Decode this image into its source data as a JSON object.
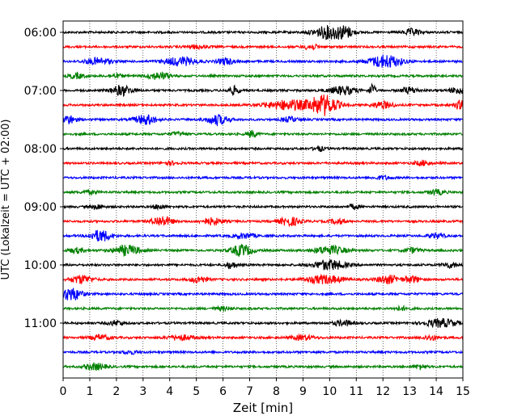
{
  "chart_data": {
    "type": "line",
    "xlabel": "Zeit  [min]",
    "ylabel": "UTC (Lokalzeit = UTC + 02:00)",
    "xlim": [
      0,
      15
    ],
    "x_ticks": [
      "0",
      "1",
      "2",
      "3",
      "4",
      "5",
      "6",
      "7",
      "8",
      "9",
      "10",
      "11",
      "12",
      "13",
      "14",
      "15"
    ],
    "y_ticks": [
      "06:00",
      "07:00",
      "08:00",
      "09:00",
      "10:00",
      "11:00"
    ],
    "grid_x": true,
    "trace_interval_min": 15,
    "start_time": "06:00",
    "trace_colors": [
      "#000000",
      "#ff0000",
      "#0000ff",
      "#008000"
    ],
    "traces": [
      {
        "time": "06:00",
        "color": "#000000",
        "bursts": [
          [
            10.0,
            0.6,
            8
          ],
          [
            10.6,
            0.3,
            5
          ],
          [
            13.1,
            0.3,
            4
          ]
        ]
      },
      {
        "time": "06:15",
        "color": "#ff0000",
        "bursts": [
          [
            5.0,
            0.4,
            2
          ],
          [
            9.3,
            0.3,
            3
          ]
        ]
      },
      {
        "time": "06:30",
        "color": "#0000ff",
        "bursts": [
          [
            1.3,
            0.5,
            4
          ],
          [
            4.4,
            0.6,
            5
          ],
          [
            6.1,
            0.3,
            4
          ],
          [
            12.1,
            0.6,
            8
          ]
        ]
      },
      {
        "time": "06:45",
        "color": "#008000",
        "bursts": [
          [
            0.5,
            0.3,
            3
          ],
          [
            2.0,
            0.3,
            2
          ],
          [
            3.4,
            0.3,
            3
          ],
          [
            3.8,
            0.3,
            3
          ]
        ]
      },
      {
        "time": "07:00",
        "color": "#000000",
        "bursts": [
          [
            2.2,
            0.4,
            6
          ],
          [
            6.4,
            0.2,
            5
          ],
          [
            10.5,
            0.5,
            5
          ],
          [
            11.6,
            0.1,
            9
          ],
          [
            13.0,
            0.3,
            4
          ],
          [
            14.8,
            0.3,
            4
          ]
        ]
      },
      {
        "time": "07:15",
        "color": "#ff0000",
        "bursts": [
          [
            8.5,
            0.9,
            6
          ],
          [
            9.8,
            0.5,
            12
          ],
          [
            12.0,
            0.4,
            4
          ],
          [
            15.0,
            0.3,
            6
          ]
        ]
      },
      {
        "time": "07:30",
        "color": "#0000ff",
        "bursts": [
          [
            0.2,
            0.3,
            5
          ],
          [
            3.1,
            0.4,
            6
          ],
          [
            5.8,
            0.4,
            6
          ],
          [
            8.5,
            0.3,
            3
          ]
        ]
      },
      {
        "time": "07:45",
        "color": "#008000",
        "bursts": [
          [
            4.3,
            0.3,
            2
          ],
          [
            7.1,
            0.2,
            4
          ]
        ]
      },
      {
        "time": "08:00",
        "color": "#000000",
        "bursts": [
          [
            9.6,
            0.2,
            3
          ]
        ]
      },
      {
        "time": "08:15",
        "color": "#ff0000",
        "bursts": [
          [
            4.0,
            0.3,
            2
          ],
          [
            13.5,
            0.3,
            3
          ]
        ]
      },
      {
        "time": "08:30",
        "color": "#0000ff",
        "bursts": [
          [
            12.0,
            0.3,
            2
          ]
        ]
      },
      {
        "time": "08:45",
        "color": "#008000",
        "bursts": [
          [
            1.0,
            0.3,
            2
          ],
          [
            14.0,
            0.3,
            3
          ]
        ]
      },
      {
        "time": "09:00",
        "color": "#000000",
        "bursts": [
          [
            1.3,
            0.2,
            3
          ],
          [
            3.6,
            0.2,
            3
          ],
          [
            10.9,
            0.2,
            3
          ]
        ]
      },
      {
        "time": "09:15",
        "color": "#ff0000",
        "bursts": [
          [
            3.7,
            0.4,
            6
          ],
          [
            5.6,
            0.4,
            4
          ],
          [
            8.5,
            0.4,
            5
          ],
          [
            10.3,
            0.3,
            3
          ]
        ]
      },
      {
        "time": "09:30",
        "color": "#0000ff",
        "bursts": [
          [
            1.4,
            0.4,
            7
          ],
          [
            6.8,
            0.4,
            3
          ],
          [
            14.0,
            0.3,
            3
          ]
        ]
      },
      {
        "time": "09:45",
        "color": "#008000",
        "bursts": [
          [
            0.5,
            0.3,
            3
          ],
          [
            2.4,
            0.5,
            6
          ],
          [
            6.7,
            0.4,
            7
          ],
          [
            10.0,
            0.6,
            5
          ],
          [
            13.1,
            0.3,
            3
          ]
        ]
      },
      {
        "time": "10:00",
        "color": "#000000",
        "bursts": [
          [
            6.3,
            0.2,
            4
          ],
          [
            10.0,
            0.6,
            6
          ],
          [
            14.5,
            0.3,
            3
          ]
        ]
      },
      {
        "time": "10:15",
        "color": "#ff0000",
        "bursts": [
          [
            0.7,
            0.4,
            5
          ],
          [
            5.1,
            0.3,
            4
          ],
          [
            9.8,
            0.7,
            5
          ],
          [
            12.2,
            0.4,
            5
          ],
          [
            13.1,
            0.3,
            4
          ]
        ]
      },
      {
        "time": "10:30",
        "color": "#0000ff",
        "bursts": [
          [
            0.3,
            0.4,
            8
          ]
        ]
      },
      {
        "time": "10:45",
        "color": "#008000",
        "bursts": [
          [
            6.0,
            0.3,
            2
          ],
          [
            12.7,
            0.3,
            2
          ]
        ]
      },
      {
        "time": "11:00",
        "color": "#000000",
        "bursts": [
          [
            2.0,
            0.3,
            3
          ],
          [
            10.5,
            0.4,
            3
          ],
          [
            14.2,
            0.6,
            5
          ]
        ]
      },
      {
        "time": "11:15",
        "color": "#ff0000",
        "bursts": [
          [
            1.4,
            0.4,
            3
          ],
          [
            4.4,
            0.5,
            3
          ],
          [
            9.0,
            0.4,
            3
          ],
          [
            13.8,
            0.3,
            3
          ]
        ]
      },
      {
        "time": "11:30",
        "color": "#0000ff",
        "bursts": [
          [
            2.5,
            0.3,
            2
          ]
        ]
      },
      {
        "time": "11:45",
        "color": "#008000",
        "bursts": [
          [
            1.2,
            0.4,
            4
          ],
          [
            13.4,
            0.2,
            3
          ]
        ]
      }
    ]
  }
}
